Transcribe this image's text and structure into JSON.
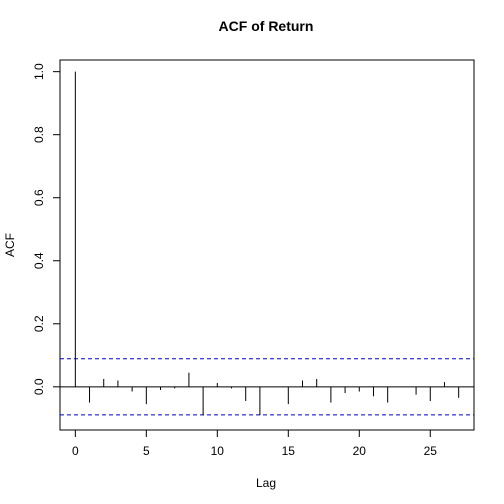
{
  "chart_data": {
    "type": "bar",
    "title": "ACF of Return",
    "xlabel": "Lag",
    "ylabel": "ACF",
    "xlim": [
      -1.08,
      28.08
    ],
    "ylim": [
      -0.137,
      1.037
    ],
    "x_ticks": [
      0,
      5,
      10,
      15,
      20,
      25
    ],
    "y_ticks": [
      0.0,
      0.2,
      0.4,
      0.6,
      0.8,
      1.0
    ],
    "confidence_bounds": [
      0.089,
      -0.089
    ],
    "lags": [
      0,
      1,
      2,
      3,
      4,
      5,
      6,
      7,
      8,
      9,
      10,
      11,
      12,
      13,
      14,
      15,
      16,
      17,
      18,
      19,
      20,
      21,
      22,
      23,
      24,
      25,
      26,
      27
    ],
    "values": [
      1.0,
      -0.05,
      0.025,
      0.02,
      -0.015,
      -0.055,
      -0.01,
      -0.005,
      0.045,
      -0.09,
      0.012,
      -0.005,
      -0.045,
      -0.09,
      0.0,
      -0.055,
      0.02,
      0.025,
      -0.05,
      -0.02,
      -0.015,
      -0.03,
      -0.05,
      0.0,
      -0.025,
      -0.045,
      0.015,
      -0.035
    ],
    "colors": {
      "bars": "#000000",
      "bounds": "#0000cc",
      "axes": "#000000"
    }
  }
}
